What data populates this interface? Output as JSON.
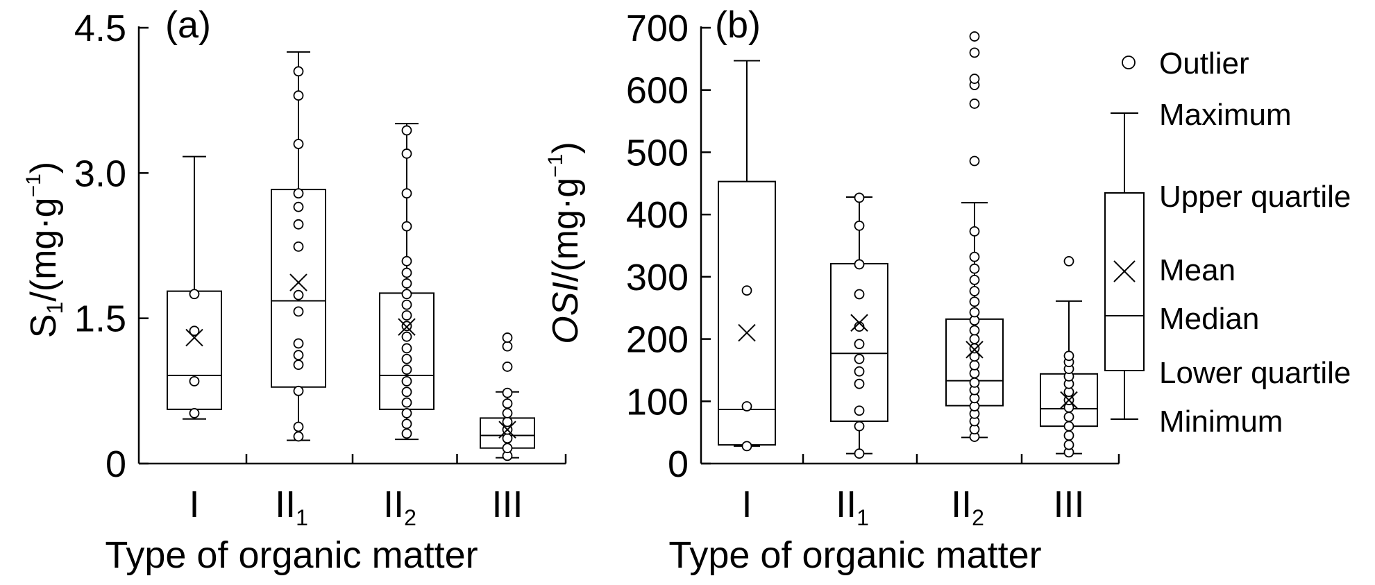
{
  "chart_data": [
    {
      "type": "box",
      "panel_label": "(a)",
      "ylabel": "S1/(mg·g−1)",
      "ylabel_parts": {
        "main": "S",
        "sub": "1",
        "unit_open": "/(mg·g",
        "sup": "−1",
        "unit_close": ")"
      },
      "xlabel": "Type of organic matter",
      "ylim": [
        0,
        4.5
      ],
      "yticks": [
        0,
        1.5,
        3.0,
        4.5
      ],
      "ytick_labels": [
        "0",
        "1.5",
        "3.0",
        "4.5"
      ],
      "categories": [
        {
          "main": "I",
          "sub": ""
        },
        {
          "main": "II",
          "sub": "1"
        },
        {
          "main": "II",
          "sub": "2"
        },
        {
          "main": "III",
          "sub": ""
        }
      ],
      "boxes": [
        {
          "min": 0.46,
          "q1": 0.56,
          "median": 0.91,
          "q3": 1.78,
          "max": 3.17,
          "mean": 1.3,
          "points": [
            0.52,
            0.85,
            1.37,
            1.75
          ]
        },
        {
          "min": 0.24,
          "q1": 0.79,
          "median": 1.68,
          "q3": 2.83,
          "max": 4.25,
          "mean": 1.87,
          "points": [
            0.28,
            0.38,
            0.75,
            1.02,
            1.12,
            1.24,
            1.57,
            1.74,
            2.24,
            2.47,
            2.65,
            2.79,
            3.3,
            3.8,
            4.05
          ]
        },
        {
          "min": 0.25,
          "q1": 0.56,
          "median": 0.91,
          "q3": 1.76,
          "max": 3.51,
          "mean": 1.41,
          "points": [
            0.31,
            0.41,
            0.52,
            0.63,
            0.74,
            0.85,
            0.97,
            1.08,
            1.19,
            1.31,
            1.42,
            1.53,
            1.64,
            1.75,
            1.86,
            1.97,
            2.09,
            2.45,
            2.79,
            3.2,
            3.44
          ]
        },
        {
          "min": 0.06,
          "q1": 0.16,
          "median": 0.29,
          "q3": 0.47,
          "max": 0.74,
          "mean": 0.35,
          "points": [
            0.08,
            0.16,
            0.26,
            0.35,
            0.43,
            0.52,
            0.62,
            0.73,
            1.0,
            1.21,
            1.3
          ]
        }
      ]
    },
    {
      "type": "box",
      "panel_label": "(b)",
      "ylabel": "OSI/(mg·g−1)",
      "ylabel_parts": {
        "main": "OSI",
        "sub": "",
        "unit_open": "/(mg·g",
        "sup": "−1",
        "unit_close": ")"
      },
      "xlabel": "Type of organic matter",
      "ylim": [
        0,
        700
      ],
      "yticks": [
        0,
        100,
        200,
        300,
        400,
        500,
        600,
        700
      ],
      "ytick_labels": [
        "0",
        "100",
        "200",
        "300",
        "400",
        "500",
        "600",
        "700"
      ],
      "categories": [
        {
          "main": "I",
          "sub": ""
        },
        {
          "main": "II",
          "sub": "1"
        },
        {
          "main": "II",
          "sub": "2"
        },
        {
          "main": "III",
          "sub": ""
        }
      ],
      "boxes": [
        {
          "min": 28,
          "q1": 30,
          "median": 87,
          "q3": 453,
          "max": 647,
          "mean": 210,
          "points": [
            28,
            92,
            278
          ]
        },
        {
          "min": 16,
          "q1": 68,
          "median": 177,
          "q3": 321,
          "max": 428,
          "mean": 226,
          "points": [
            16,
            60,
            85,
            128,
            148,
            168,
            192,
            220,
            272,
            320,
            382,
            427
          ]
        },
        {
          "min": 42,
          "q1": 93,
          "median": 133,
          "q3": 232,
          "max": 419,
          "mean": 183,
          "points": [
            43,
            55,
            68,
            80,
            92,
            105,
            118,
            130,
            145,
            158,
            172,
            185,
            200,
            214,
            230,
            243,
            260,
            277,
            295,
            313,
            332,
            373,
            486,
            578,
            608,
            618,
            660,
            686
          ]
        },
        {
          "min": 16,
          "q1": 60,
          "median": 88,
          "q3": 144,
          "max": 261,
          "mean": 102,
          "points": [
            18,
            30,
            45,
            60,
            75,
            90,
            102,
            115,
            128,
            140,
            152,
            163,
            173,
            325
          ]
        }
      ]
    }
  ],
  "legend": {
    "outlier": "Outlier",
    "maximum": "Maximum",
    "upper_quartile": "Upper quartile",
    "mean": "Mean",
    "median": "Median",
    "lower_quartile": "Lower quartile",
    "minimum": "Minimum"
  }
}
